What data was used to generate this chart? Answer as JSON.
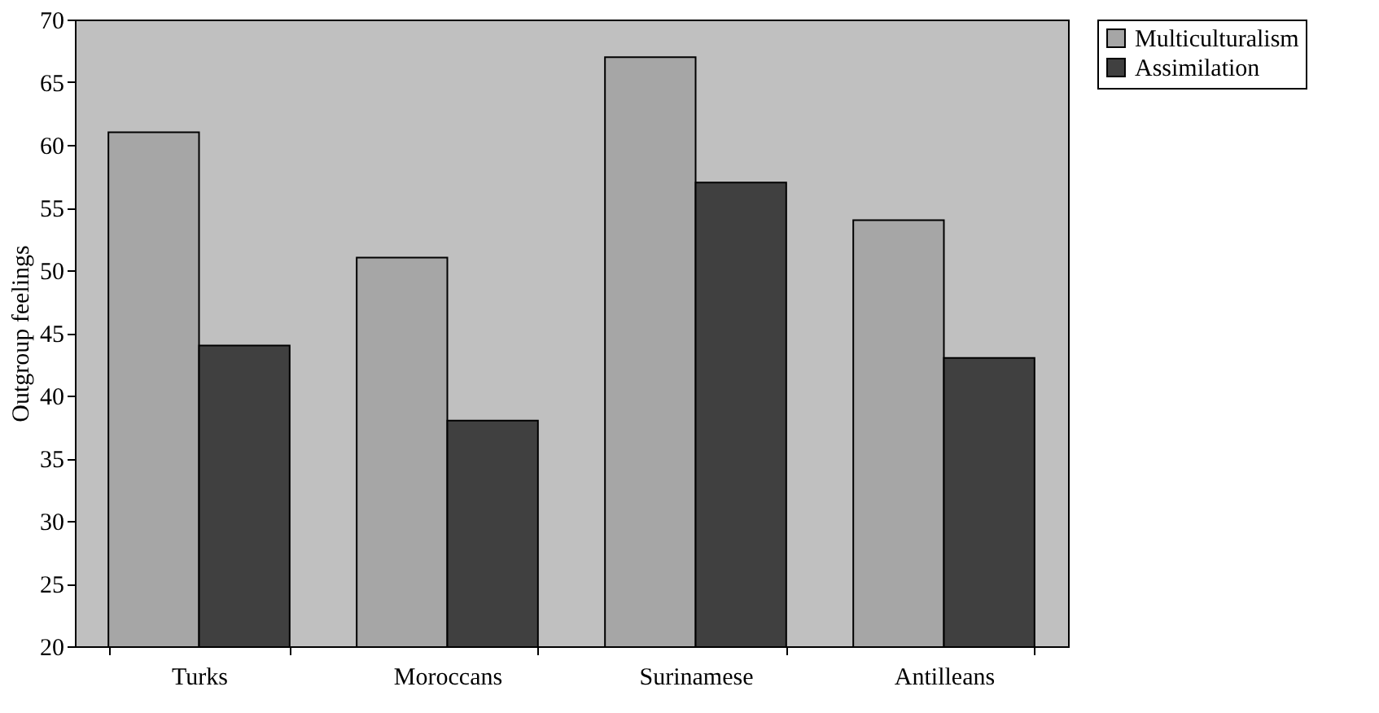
{
  "chart_data": {
    "type": "bar",
    "ylabel": "Outgroup feelings",
    "categories": [
      "Turks",
      "Moroccans",
      "Surinamese",
      "Antilleans"
    ],
    "series": [
      {
        "name": "Multiculturalism",
        "color": "#a6a6a6",
        "values": [
          61,
          51,
          67,
          54
        ]
      },
      {
        "name": "Assimilation",
        "color": "#404040",
        "values": [
          44,
          38,
          57,
          43
        ]
      }
    ],
    "ylim": [
      20,
      70
    ],
    "yticks": [
      20,
      25,
      30,
      35,
      40,
      45,
      50,
      55,
      60,
      65,
      70
    ],
    "grid": false,
    "legend": "right"
  }
}
